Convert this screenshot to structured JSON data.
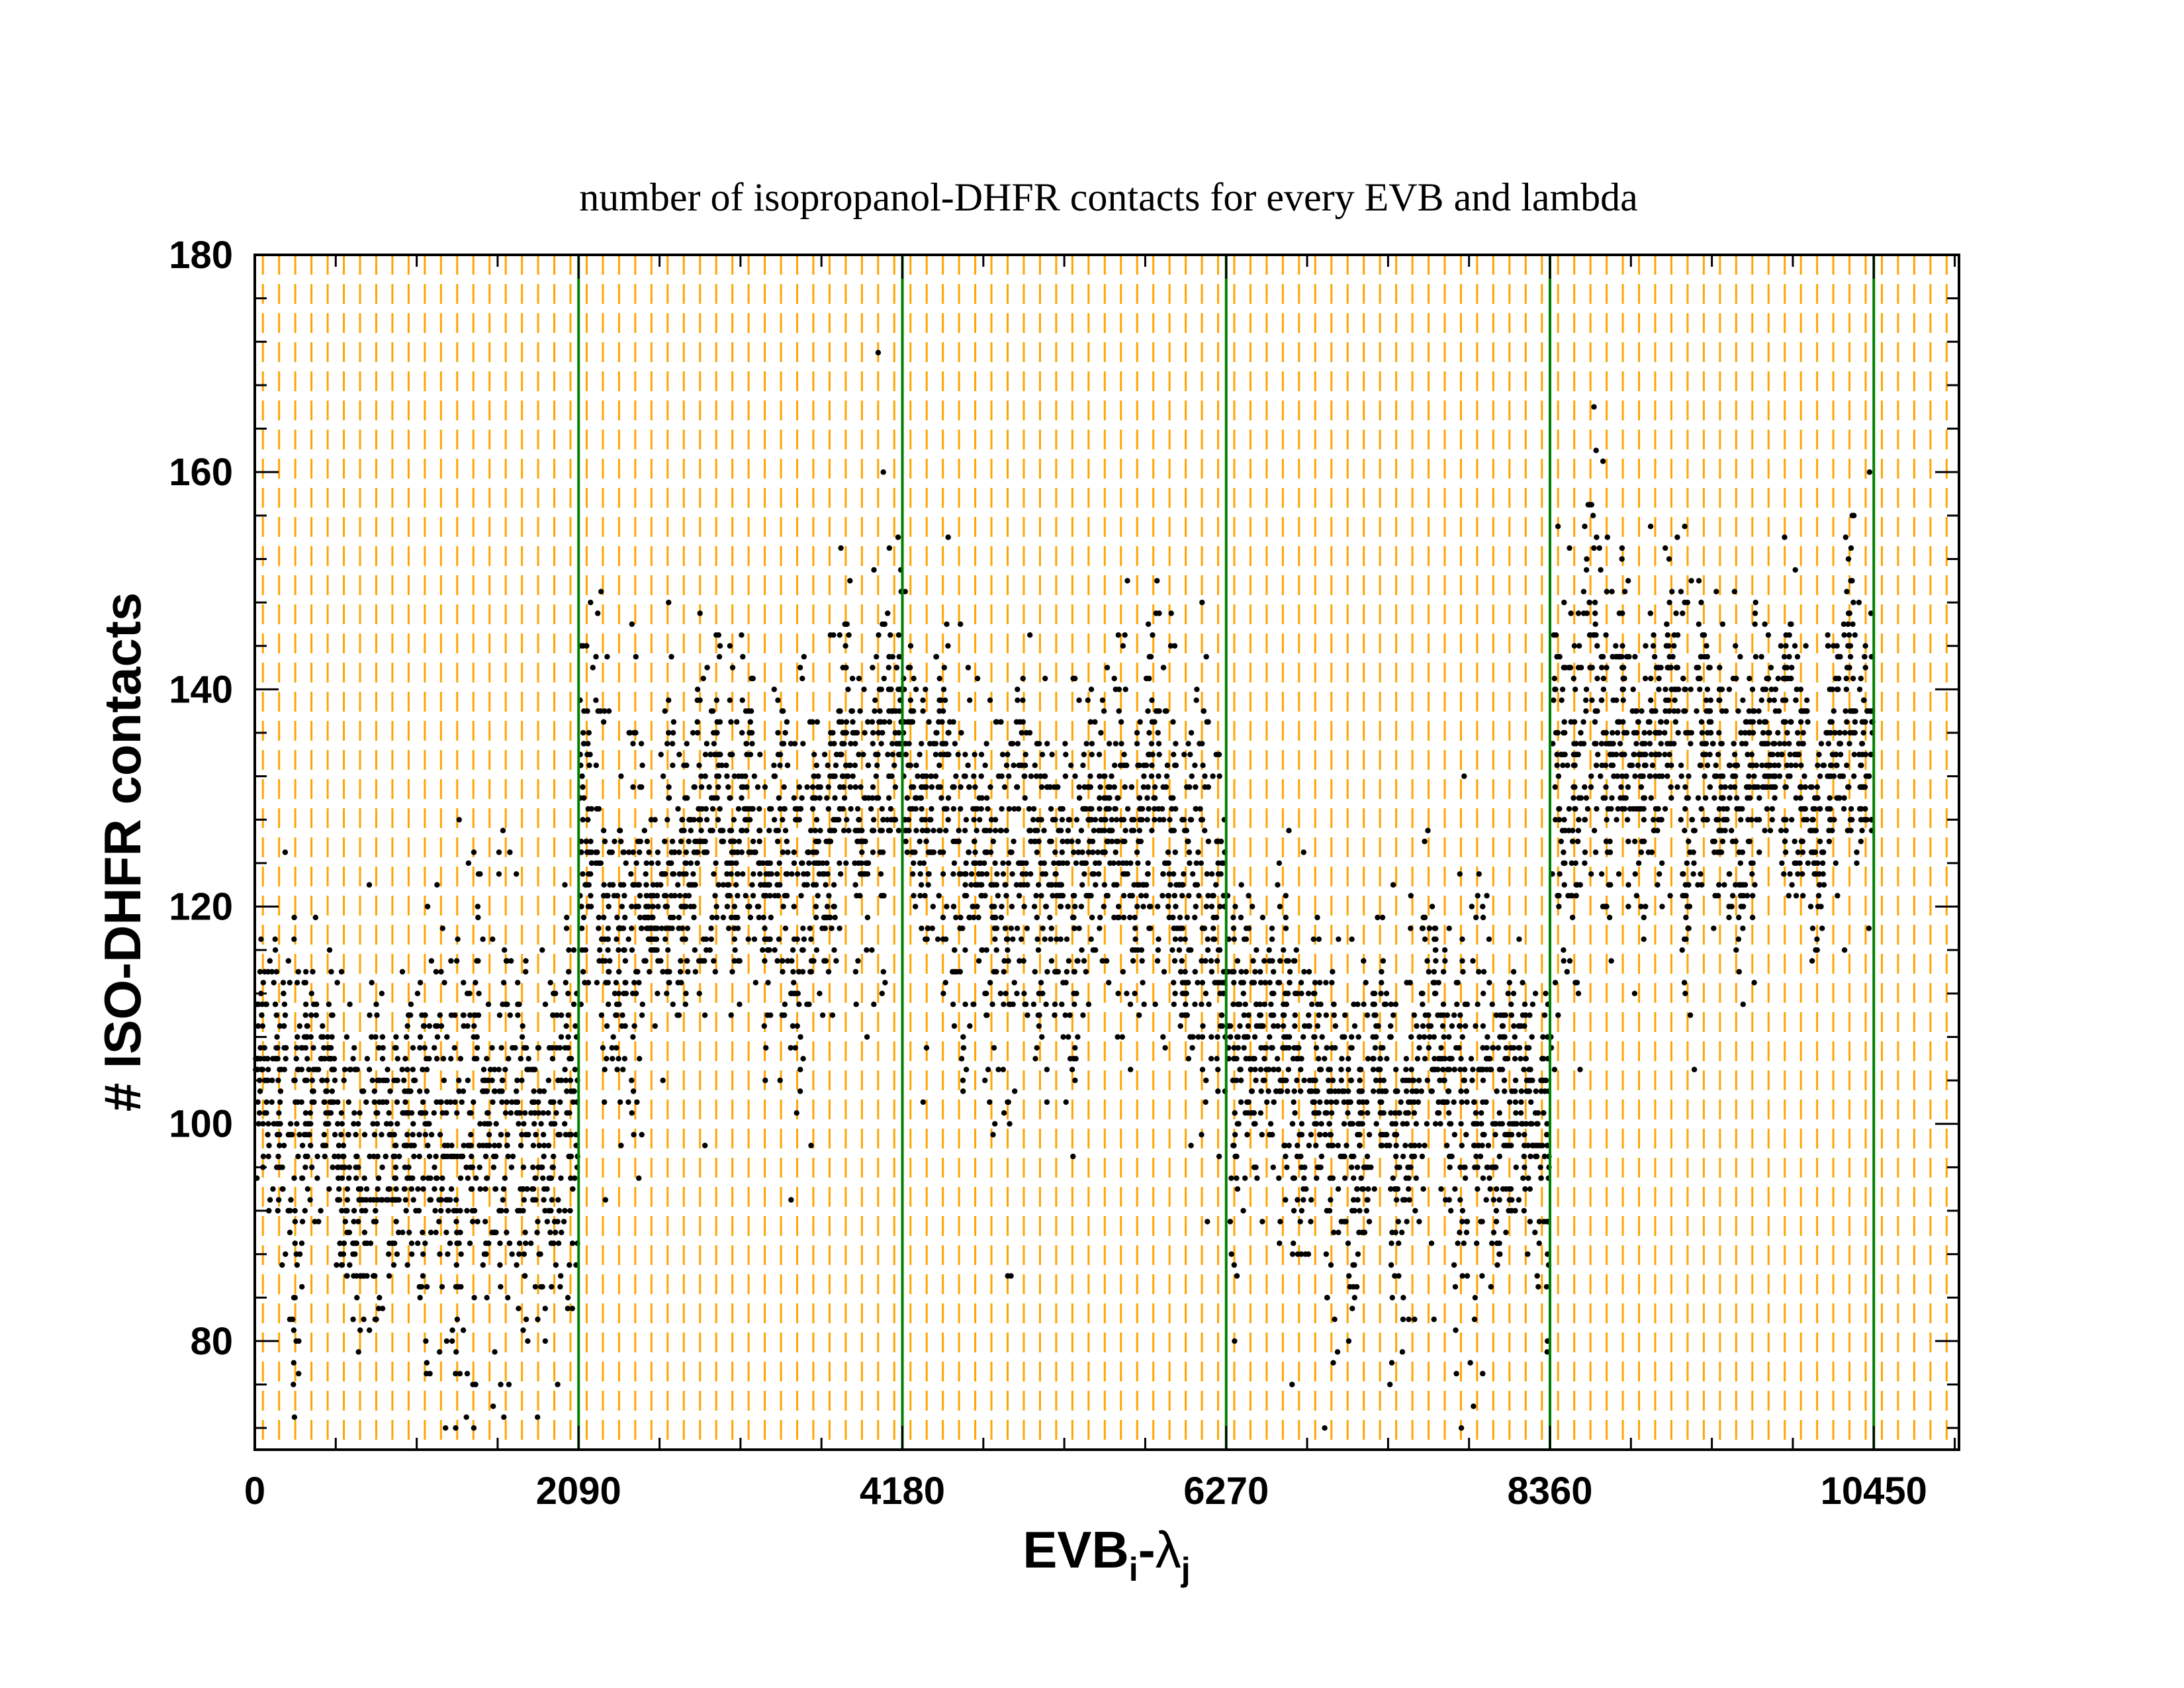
{
  "chart_data": {
    "type": "scatter",
    "title": "number of isopropanol-DHFR contacts for every EVB and lambda",
    "xlabel": {
      "main": "EVB",
      "sub_i": "i",
      "dash": "-",
      "lambda": "λ",
      "sub_j": "j"
    },
    "ylabel": "# ISO-DHFR contacts",
    "xlim": [
      0,
      11000
    ],
    "ylim": [
      70,
      180
    ],
    "x_ticks": [
      0,
      2090,
      4180,
      6270,
      8360,
      10450
    ],
    "x_tick_labels": [
      "0",
      "2090",
      "4180",
      "6270",
      "8360",
      "10450"
    ],
    "x_minor_step": 522.5,
    "y_ticks": [
      80,
      100,
      120,
      140,
      160,
      180
    ],
    "y_tick_labels": [
      "80",
      "100",
      "120",
      "140",
      "160",
      "180"
    ],
    "y_minor_step": 4,
    "orange_grid_step": 104.5,
    "green_separators": [
      2090,
      4180,
      6270,
      8360,
      10450
    ],
    "segment_profile": [
      {
        "x": 0,
        "y": 100
      },
      {
        "x": 600,
        "y": 98
      },
      {
        "x": 1100,
        "y": 95
      },
      {
        "x": 1600,
        "y": 101
      },
      {
        "x": 2090,
        "y": 100
      },
      {
        "x": 2100,
        "y": 124
      },
      {
        "x": 2600,
        "y": 116
      },
      {
        "x": 3000,
        "y": 130
      },
      {
        "x": 3500,
        "y": 122
      },
      {
        "x": 3800,
        "y": 132
      },
      {
        "x": 4180,
        "y": 134
      },
      {
        "x": 4600,
        "y": 126
      },
      {
        "x": 5200,
        "y": 122
      },
      {
        "x": 5700,
        "y": 128
      },
      {
        "x": 6270,
        "y": 116
      },
      {
        "x": 6300,
        "y": 103
      },
      {
        "x": 7000,
        "y": 103
      },
      {
        "x": 7800,
        "y": 103
      },
      {
        "x": 8360,
        "y": 98
      },
      {
        "x": 8370,
        "y": 135
      },
      {
        "x": 9000,
        "y": 137
      },
      {
        "x": 9500,
        "y": 130
      },
      {
        "x": 10000,
        "y": 130
      },
      {
        "x": 10450,
        "y": 140
      }
    ],
    "series_color": "#000000",
    "grid_color": "#ffa500",
    "separator_color": "#008000",
    "background": "#ffffff"
  }
}
